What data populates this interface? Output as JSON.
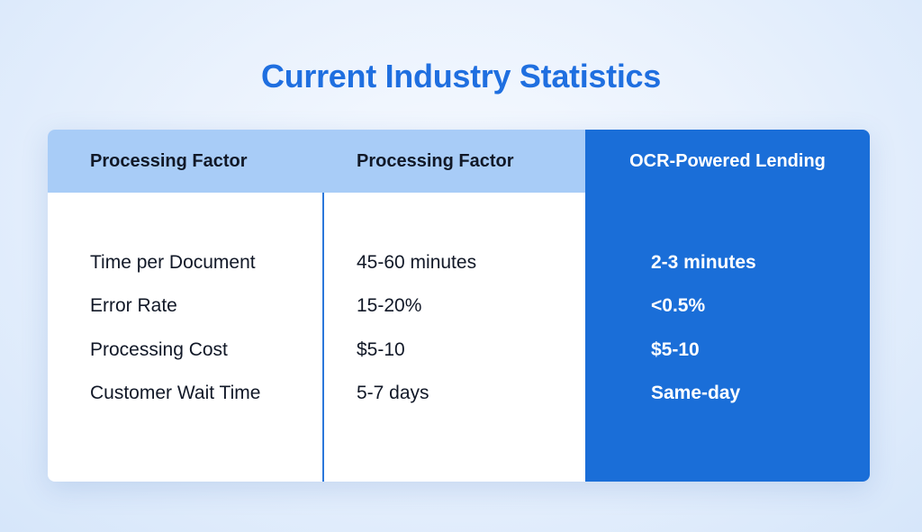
{
  "title": "Current Industry Statistics",
  "table": {
    "headers": [
      "Processing Factor",
      "Processing Factor",
      "OCR-Powered Lending"
    ],
    "rows": [
      [
        "Time per Document",
        "45-60 minutes",
        "2-3 minutes"
      ],
      [
        "Error Rate",
        "15-20%",
        "<0.5%"
      ],
      [
        "Processing Cost",
        "$5-10",
        "$5-10"
      ],
      [
        "Customer Wait Time",
        "5-7 days",
        "Same-day"
      ]
    ]
  },
  "colors": {
    "title": "#1f6fe0",
    "header_band": "#a8ccf7",
    "highlight_column": "#1a6ed8",
    "divider": "#2b78db",
    "text": "#111827",
    "highlight_text": "#ffffff"
  }
}
